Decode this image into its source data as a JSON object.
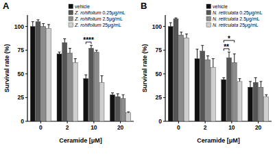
{
  "chart_data": [
    {
      "type": "bar",
      "title": "A",
      "x_label": "Ceramide [μM]",
      "y_label": "Survival rate (%)",
      "categories": [
        "0",
        "2",
        "10",
        "20"
      ],
      "series": [
        {
          "name": "vehicle",
          "color": "#111111",
          "values": [
            100,
            71,
            45,
            28
          ],
          "errors": [
            5,
            2,
            4,
            2
          ]
        },
        {
          "name": "Z. rohifolium 0.25μg/mL",
          "color": "#555555",
          "values": [
            105,
            83,
            77,
            26
          ],
          "errors": [
            2,
            4,
            3,
            3
          ]
        },
        {
          "name": "Z. rohifolium 2.5μg/mL",
          "color": "#8c8c8c",
          "values": [
            100,
            72,
            73,
            24
          ],
          "errors": [
            3,
            5,
            2,
            4
          ]
        },
        {
          "name": "Z. rohifolium 25μg/mL",
          "color": "#cfcfcf",
          "values": [
            98,
            62,
            41,
            9
          ],
          "errors": [
            4,
            4,
            7,
            1
          ]
        }
      ],
      "ylim": [
        0,
        112
      ],
      "yticks": [
        0,
        25,
        50,
        75,
        100
      ],
      "legend": "top-right",
      "annotations": [
        {
          "text": "****",
          "category": 2,
          "series": [
            0,
            1
          ]
        }
      ]
    },
    {
      "type": "bar",
      "title": "B",
      "x_label": "Ceramide [μM]",
      "y_label": "Survival rate (%)",
      "categories": [
        "0",
        "2",
        "10",
        "20"
      ],
      "series": [
        {
          "name": "vehicle",
          "color": "#111111",
          "values": [
            100,
            66,
            44,
            36
          ],
          "errors": [
            4,
            10,
            2,
            6
          ]
        },
        {
          "name": "N. reticulata 0.25μg/mL",
          "color": "#555555",
          "values": [
            108,
            74,
            67,
            41
          ],
          "errors": [
            1,
            6,
            6,
            5
          ]
        },
        {
          "name": "N. reticulata 2.5μg/mL",
          "color": "#8c8c8c",
          "values": [
            91,
            65,
            62,
            36
          ],
          "errors": [
            3,
            4,
            9,
            6
          ]
        },
        {
          "name": "N. reticulata 25μg/mL",
          "color": "#cfcfcf",
          "values": [
            88,
            57,
            42,
            26
          ],
          "errors": [
            4,
            9,
            3,
            2
          ]
        }
      ],
      "ylim": [
        0,
        112
      ],
      "yticks": [
        0,
        25,
        50,
        75,
        100
      ],
      "legend": "top-right",
      "annotations": [
        {
          "text": "**",
          "category": 2,
          "series": [
            0,
            1
          ]
        },
        {
          "text": "*",
          "category": 2,
          "series": [
            0,
            2
          ]
        }
      ]
    }
  ]
}
